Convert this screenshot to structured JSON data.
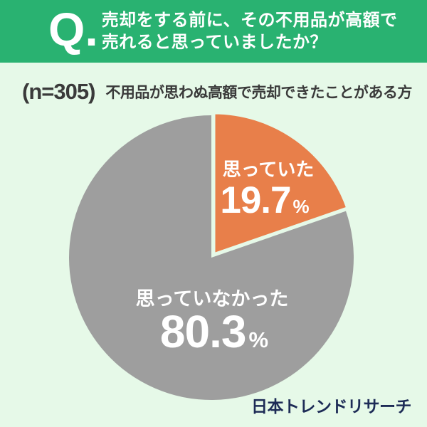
{
  "colors": {
    "header_green": "#29b271",
    "background_mint": "#e6f9e8",
    "slice_orange": "#e87f4a",
    "slice_gray": "#9e9e9e",
    "subtitle_text": "#3a3a3a",
    "label_white": "#ffffff",
    "logo_navy": "#1d2b56"
  },
  "header": {
    "q_mark": "Q.",
    "title_line1": "売却をする前に、その不用品が高額で",
    "title_line2": "売れると思っていましたか？"
  },
  "subtitle": {
    "sample_size": "(n=305)",
    "description": "不用品が思わぬ高額で売却できたことがある方"
  },
  "chart_data": {
    "type": "pie",
    "title": "売却をする前に、その不用品が高額で売れると思っていましたか？",
    "sample_label": "(n=305)",
    "sample_n": 305,
    "start_angle_deg": 0,
    "direction": "clockwise",
    "legend_position": "inside",
    "slices": [
      {
        "label": "思っていた",
        "value": 19.7,
        "unit": "%",
        "color": "#e87f4a"
      },
      {
        "label": "思っていなかった",
        "value": 80.3,
        "unit": "%",
        "color": "#9e9e9e"
      }
    ]
  },
  "footer": {
    "brand": "日本トレンドリサーチ"
  }
}
